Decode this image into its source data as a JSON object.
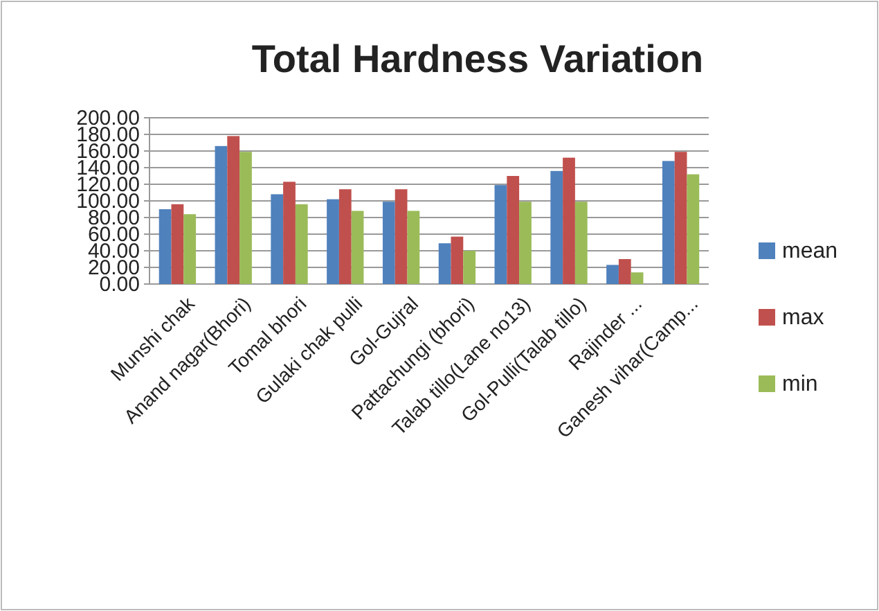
{
  "chart_data": {
    "type": "bar",
    "title": "Total Hardness Variation",
    "categories": [
      "Munshi chak",
      "Anand nagar(Bhori)",
      "Tomal bhori",
      "Gulaki chak pulli",
      "Gol-Gujral",
      "Pattachungi (bhori)",
      "Talab tillo(Lane no13)",
      "Gol-Pulli(Talab tillo)",
      "Rajinder ...",
      "Ganesh vihar(Camp..."
    ],
    "series": [
      {
        "name": "mean",
        "color": "#4f81bd",
        "values": [
          90,
          166,
          108,
          102,
          99,
          49,
          119,
          136,
          23,
          148
        ]
      },
      {
        "name": "max",
        "color": "#c0504d",
        "values": [
          96,
          178,
          123,
          114,
          114,
          57,
          130,
          152,
          30,
          159
        ]
      },
      {
        "name": "min",
        "color": "#9bbb59",
        "values": [
          84,
          159,
          96,
          88,
          88,
          40,
          99,
          99,
          14,
          132
        ]
      }
    ],
    "ylim": [
      0,
      200
    ],
    "yticks": [
      {
        "value": 0,
        "label": "0.00"
      },
      {
        "value": 20,
        "label": "20.00"
      },
      {
        "value": 40,
        "label": "40.00"
      },
      {
        "value": 60,
        "label": "60.00"
      },
      {
        "value": 80,
        "label": "80.00"
      },
      {
        "value": 100,
        "label": "100.00"
      },
      {
        "value": 120,
        "label": "120.00"
      },
      {
        "value": 140,
        "label": "140.00"
      },
      {
        "value": 160,
        "label": "160.00"
      },
      {
        "value": 180,
        "label": "180.00"
      },
      {
        "value": 200,
        "label": "200.00"
      }
    ],
    "grid": "y",
    "legend": "right"
  }
}
